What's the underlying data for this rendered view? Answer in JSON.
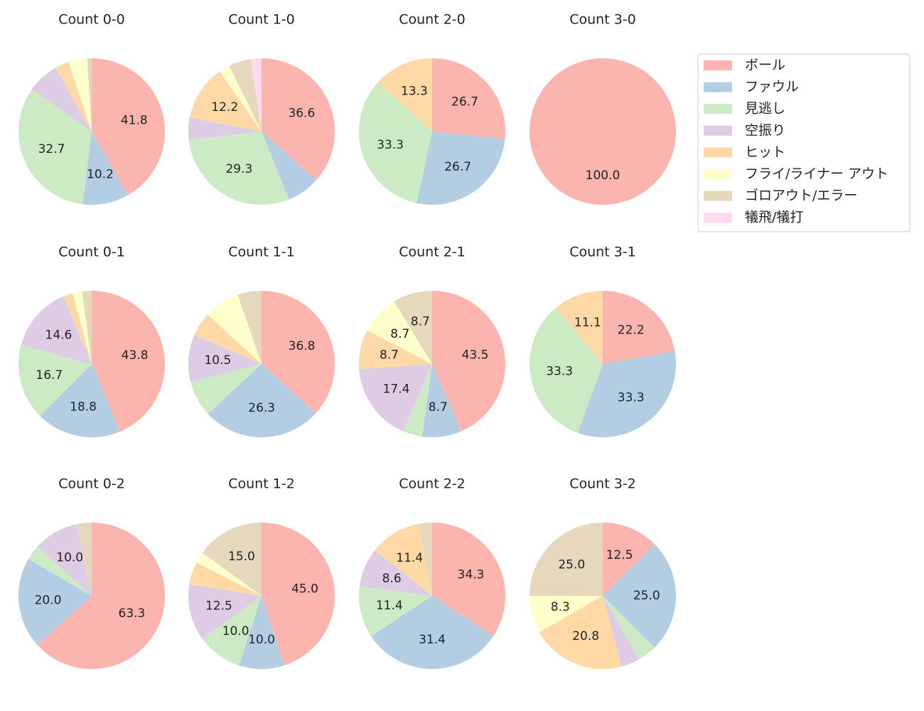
{
  "chart_data": [
    {
      "type": "pie",
      "title": "Count 0-0",
      "values": [
        41.8,
        10.2,
        32.7,
        7.1,
        3.1,
        4.1,
        1.0,
        0
      ],
      "value_labels": [
        "41.8",
        "10.2",
        "32.7",
        null,
        null,
        null,
        null,
        null
      ]
    },
    {
      "type": "pie",
      "title": "Count 1-0",
      "values": [
        36.6,
        7.3,
        29.3,
        4.9,
        12.2,
        2.4,
        4.9,
        2.4
      ],
      "value_labels": [
        "36.6",
        null,
        "29.3",
        null,
        "12.2",
        null,
        null,
        null
      ]
    },
    {
      "type": "pie",
      "title": "Count 2-0",
      "values": [
        26.7,
        26.7,
        33.3,
        0,
        13.3,
        0,
        0,
        0
      ],
      "value_labels": [
        "26.7",
        "26.7",
        "33.3",
        null,
        "13.3",
        null,
        null,
        null
      ]
    },
    {
      "type": "pie",
      "title": "Count 3-0",
      "values": [
        100.0,
        0,
        0,
        0,
        0,
        0,
        0,
        0
      ],
      "value_labels": [
        "100.0",
        null,
        null,
        null,
        null,
        null,
        null,
        null
      ]
    },
    {
      "type": "pie",
      "title": "Count 0-1",
      "values": [
        43.8,
        18.8,
        16.7,
        14.6,
        2.1,
        2.1,
        2.1,
        0
      ],
      "value_labels": [
        "43.8",
        "18.8",
        "16.7",
        "14.6",
        null,
        null,
        null,
        null
      ]
    },
    {
      "type": "pie",
      "title": "Count 1-1",
      "values": [
        36.8,
        26.3,
        7.9,
        10.5,
        5.3,
        7.9,
        5.3,
        0
      ],
      "value_labels": [
        "36.8",
        "26.3",
        null,
        "10.5",
        null,
        null,
        null,
        null
      ]
    },
    {
      "type": "pie",
      "title": "Count 2-1",
      "values": [
        43.5,
        8.7,
        4.3,
        17.4,
        8.7,
        8.7,
        8.7,
        0
      ],
      "value_labels": [
        "43.5",
        "8.7",
        null,
        "17.4",
        "8.7",
        "8.7",
        "8.7",
        null
      ]
    },
    {
      "type": "pie",
      "title": "Count 3-1",
      "values": [
        22.2,
        33.3,
        33.3,
        0,
        11.1,
        0,
        0,
        0
      ],
      "value_labels": [
        "22.2",
        "33.3",
        "33.3",
        null,
        "11.1",
        null,
        null,
        null
      ]
    },
    {
      "type": "pie",
      "title": "Count 0-2",
      "values": [
        63.3,
        20.0,
        3.3,
        10.0,
        0,
        0,
        3.3,
        0
      ],
      "value_labels": [
        "63.3",
        "20.0",
        null,
        "10.0",
        null,
        null,
        null,
        null
      ]
    },
    {
      "type": "pie",
      "title": "Count 1-2",
      "values": [
        45.0,
        10.0,
        10.0,
        12.5,
        5.0,
        2.5,
        15.0,
        0
      ],
      "value_labels": [
        "45.0",
        "10.0",
        "10.0",
        "12.5",
        null,
        null,
        "15.0",
        null
      ]
    },
    {
      "type": "pie",
      "title": "Count 2-2",
      "values": [
        34.3,
        31.4,
        11.4,
        8.6,
        11.4,
        0,
        2.9,
        0
      ],
      "value_labels": [
        "34.3",
        "31.4",
        "11.4",
        "8.6",
        "11.4",
        null,
        null,
        null
      ]
    },
    {
      "type": "pie",
      "title": "Count 3-2",
      "values": [
        12.5,
        25.0,
        4.2,
        4.2,
        20.8,
        8.3,
        25.0,
        0
      ],
      "value_labels": [
        "12.5",
        "25.0",
        null,
        null,
        "20.8",
        "8.3",
        "25.0",
        null
      ]
    }
  ],
  "legend": {
    "loc": "upper right",
    "labels": [
      "ボール",
      "ファウル",
      "見逃し",
      "空振り",
      "ヒット",
      "フライ/ライナー アウト",
      "ゴロアウト/エラー",
      "犠飛/犠打"
    ],
    "colors": [
      "#fbb4ae",
      "#b3cde3",
      "#ccebc5",
      "#decbe4",
      "#fed9a6",
      "#ffffcc",
      "#e5d8bd",
      "#fddaec"
    ]
  }
}
